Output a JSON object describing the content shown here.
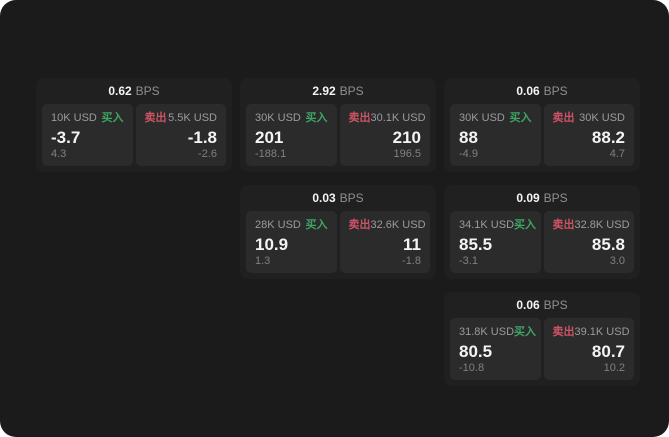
{
  "labels": {
    "buy": "买入",
    "sell": "卖出",
    "bps_unit": "BPS"
  },
  "colors": {
    "window_background": "#1b1b1c",
    "card_background": "#202021",
    "panel_background": "#2b2b2c",
    "buy_green": "#3ea563",
    "sell_red": "#cd5364",
    "value_white": "#f4f4f5",
    "muted_gray": "#9b9b9d",
    "sub_gray": "#808082"
  },
  "cards": [
    {
      "row": 1,
      "col": 1,
      "bps": "0.62",
      "buy": {
        "size": "10K USD",
        "value": "-3.7",
        "sub": "4.3"
      },
      "sell": {
        "size": "5.5K USD",
        "value": "-1.8",
        "sub": "-2.6"
      }
    },
    {
      "row": 1,
      "col": 2,
      "bps": "2.92",
      "buy": {
        "size": "30K USD",
        "value": "201",
        "sub": "-188.1"
      },
      "sell": {
        "size": "30.1K USD",
        "value": "210",
        "sub": "196.5"
      }
    },
    {
      "row": 1,
      "col": 3,
      "bps": "0.06",
      "buy": {
        "size": "30K USD",
        "value": "88",
        "sub": "-4.9"
      },
      "sell": {
        "size": "30K USD",
        "value": "88.2",
        "sub": "4.7"
      }
    },
    {
      "row": 2,
      "col": 2,
      "bps": "0.03",
      "buy": {
        "size": "28K USD",
        "value": "10.9",
        "sub": "1.3"
      },
      "sell": {
        "size": "32.6K USD",
        "value": "11",
        "sub": "-1.8"
      }
    },
    {
      "row": 2,
      "col": 3,
      "bps": "0.09",
      "buy": {
        "size": "34.1K USD",
        "value": "85.5",
        "sub": "-3.1"
      },
      "sell": {
        "size": "32.8K USD",
        "value": "85.8",
        "sub": "3.0"
      }
    },
    {
      "row": 3,
      "col": 3,
      "bps": "0.06",
      "buy": {
        "size": "31.8K USD",
        "value": "80.5",
        "sub": "-10.8"
      },
      "sell": {
        "size": "39.1K USD",
        "value": "80.7",
        "sub": "10.2"
      }
    }
  ]
}
